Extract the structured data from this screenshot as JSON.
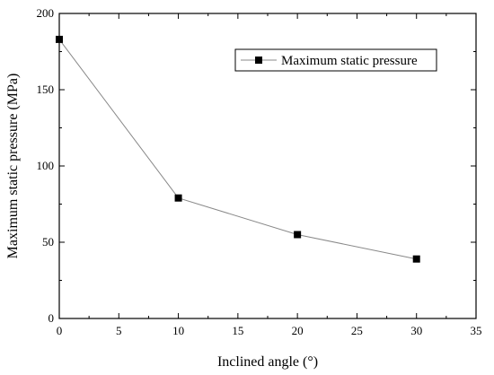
{
  "chart_data": {
    "type": "line",
    "title": "",
    "xlabel": "Inclined angle (°)",
    "ylabel": "Maximum static pressure (MPa)",
    "xlim": [
      0,
      35
    ],
    "ylim": [
      0,
      200
    ],
    "x_ticks": [
      "0",
      "5",
      "10",
      "15",
      "20",
      "25",
      "30",
      "35"
    ],
    "y_ticks": [
      "0",
      "50",
      "100",
      "150",
      "200"
    ],
    "grid": false,
    "legend_position": "top-right",
    "series": [
      {
        "name": "Maximum static pressure",
        "marker": "square",
        "line_color": "#888888",
        "marker_color": "#000000",
        "x": [
          0,
          10,
          20,
          30
        ],
        "y": [
          183,
          79,
          55,
          39
        ]
      }
    ]
  }
}
